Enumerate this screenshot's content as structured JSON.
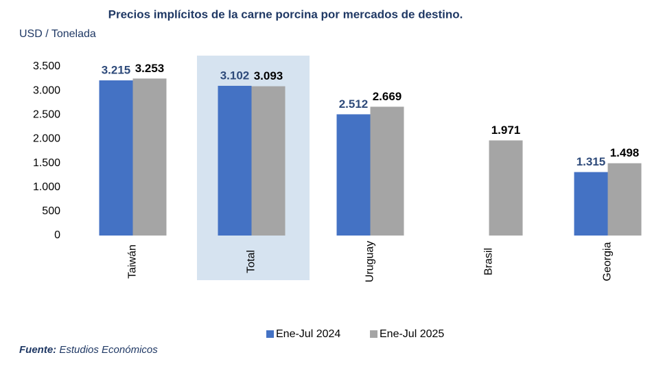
{
  "chart_data": {
    "type": "bar",
    "title": "Precios implícitos de la carne porcina por mercados de destino.",
    "y_axis_label": "USD / Tonelada",
    "categories": [
      "Taiwán",
      "Total",
      "Uruguay",
      "Brasil",
      "Georgia"
    ],
    "series": [
      {
        "name": "Ene-Jul 2024",
        "color": "#4472c4",
        "label_color": "#2e4a7a",
        "values": [
          3215,
          3102,
          2512,
          null,
          1315
        ],
        "value_labels": [
          "3.215",
          "3.102",
          "2.512",
          null,
          "1.315"
        ]
      },
      {
        "name": "Ene-Jul 2025",
        "color": "#a5a5a5",
        "label_color": "#000000",
        "values": [
          3253,
          3093,
          2669,
          1971,
          1498
        ],
        "value_labels": [
          "3.253",
          "3.093",
          "2.669",
          "1.971",
          "1.498"
        ]
      }
    ],
    "ylim": [
      0,
      3500
    ],
    "yticks": [
      0,
      500,
      {
        "value": 1000,
        "label": "1.000"
      },
      {
        "value": 1500,
        "label": "1.500"
      },
      {
        "value": 2000,
        "label": "2.000"
      },
      {
        "value": 2500,
        "label": "2.500"
      },
      {
        "value": 3000,
        "label": "3.000"
      },
      {
        "value": 3500,
        "label": "3.500"
      }
    ],
    "grid": false,
    "legend": "bottom",
    "source_label": "Fuente:",
    "source": "Estudios Económicos"
  }
}
